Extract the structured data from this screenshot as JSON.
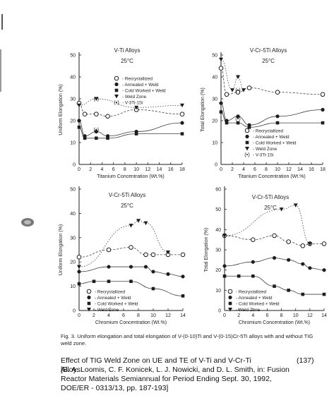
{
  "caption": "Fig. 3. Uniform elongation and total elongation of V-(0-10)Ti and V-(0-15)Cr-5Ti alloys with and without TIG weld zone.",
  "citation": {
    "title": "Effect of TIG Weld Zone on UE and TE of V-Ti and V-Cr-Ti Alloys",
    "number": "(137)",
    "lines": [
      "[B. A. Loomis, C. F. Konicek, L. J. Nowicki, and D. L. Smith, in: Fusion",
      "Reactor Materials Semiannual for Period Ending Sept. 30, 1992,",
      "DOE/ER - 0313/13, pp. 187-193]"
    ]
  },
  "chart_data": [
    {
      "type": "scatter",
      "title": "V-Ti Alloys",
      "subtitle": "25°C",
      "xlabel": "Titanium Concentration (Wt.%)",
      "ylabel": "Uniform Elongation (%)",
      "xlim": [
        0,
        18
      ],
      "ylim": [
        0,
        50
      ],
      "xticks": [
        0,
        2,
        4,
        6,
        8,
        10,
        12,
        14,
        16,
        18
      ],
      "yticks": [
        0,
        10,
        20,
        30,
        40,
        50
      ],
      "legend": [
        {
          "marker": "open",
          "label": "Recrystallized"
        },
        {
          "marker": "filled",
          "label": "Annealed + Weld"
        },
        {
          "marker": "square",
          "label": "Cold Worked + Weld"
        },
        {
          "marker": "triangle",
          "label": "Weld Zone"
        },
        {
          "marker": "paren",
          "label": "V-3Ti-1Si"
        }
      ],
      "series": [
        {
          "name": "Recrystallized",
          "marker": "open",
          "x": [
            0,
            1,
            3,
            5,
            10,
            18
          ],
          "y": [
            28,
            23,
            23,
            22,
            25,
            23
          ]
        },
        {
          "name": "Annealed + Weld",
          "marker": "filled",
          "x": [
            0,
            1,
            3,
            5,
            10,
            18
          ],
          "y": [
            20,
            13,
            15,
            13,
            15,
            19
          ]
        },
        {
          "name": "Cold Worked + Weld",
          "marker": "square",
          "x": [
            0,
            1,
            3,
            5,
            10,
            18
          ],
          "y": [
            17,
            12,
            12,
            12,
            14,
            14
          ]
        },
        {
          "name": "Weld Zone",
          "marker": "triangle",
          "x": [
            0,
            3,
            10,
            18
          ],
          "y": [
            27,
            30,
            26,
            27
          ]
        },
        {
          "name": "V-3Ti-1Si",
          "marker": "paren",
          "x": [
            3,
            3
          ],
          "y": [
            16,
            30
          ]
        }
      ]
    },
    {
      "type": "scatter",
      "title": "V-Cr-5Ti Alloys",
      "subtitle": "25°C",
      "xlabel": "Titanium Concentration (Wt.%)",
      "ylabel": "Total Elongation (%)",
      "xlim": [
        0,
        18
      ],
      "ylim": [
        0,
        50
      ],
      "xticks": [
        0,
        2,
        4,
        6,
        8,
        10,
        12,
        14,
        16,
        18
      ],
      "yticks": [
        0,
        10,
        20,
        30,
        40,
        50
      ],
      "legend": [
        {
          "marker": "open",
          "label": "Recrystallized"
        },
        {
          "marker": "filled",
          "label": "Annealed + Weld"
        },
        {
          "marker": "square",
          "label": "Cold Worked + Weld"
        },
        {
          "marker": "triangle",
          "label": "Weld Zone"
        },
        {
          "marker": "paren",
          "label": "V-3Ti-1Si"
        }
      ],
      "series": [
        {
          "name": "Recrystallized",
          "marker": "open",
          "x": [
            0,
            1,
            3,
            5,
            10,
            18
          ],
          "y": [
            44,
            32,
            33,
            35,
            33,
            32
          ]
        },
        {
          "name": "Annealed + Weld",
          "marker": "filled",
          "x": [
            0,
            1,
            3,
            5,
            10,
            18
          ],
          "y": [
            28,
            20,
            22,
            18,
            22,
            25
          ]
        },
        {
          "name": "Cold Worked + Weld",
          "marker": "square",
          "x": [
            0,
            1,
            3,
            5,
            10,
            18
          ],
          "y": [
            24,
            19,
            19,
            17,
            19,
            19
          ]
        },
        {
          "name": "Weld Zone",
          "marker": "triangle",
          "x": [
            0,
            2,
            3,
            4
          ],
          "y": [
            48,
            34,
            40,
            34
          ]
        },
        {
          "name": "V-3Ti-1Si",
          "marker": "paren",
          "x": [
            3,
            3
          ],
          "y": [
            21,
            34
          ]
        }
      ]
    },
    {
      "type": "scatter",
      "title": "V-Cr-5Ti Alloys",
      "subtitle": "25°C",
      "xlabel": "Chromium Concentration (Wt.%)",
      "ylabel": "Uniform Elongation (%)",
      "xlim": [
        0,
        14
      ],
      "ylim": [
        0,
        50
      ],
      "xticks": [
        0,
        2,
        4,
        6,
        8,
        10,
        12,
        14
      ],
      "yticks": [
        0,
        10,
        20,
        30,
        40,
        50
      ],
      "legend": [
        {
          "marker": "open",
          "label": "Recrystallized"
        },
        {
          "marker": "filled",
          "label": "Annealed + Weld"
        },
        {
          "marker": "square",
          "label": "Cold Worked + Weld"
        },
        {
          "marker": "triangle",
          "label": "Weld Zone"
        }
      ],
      "series": [
        {
          "name": "Recrystallized",
          "marker": "open",
          "x": [
            0,
            4,
            7,
            9,
            10,
            12,
            14
          ],
          "y": [
            22,
            25,
            26,
            23,
            23,
            23,
            23
          ]
        },
        {
          "name": "Annealed + Weld",
          "marker": "filled",
          "x": [
            0,
            4,
            7,
            9,
            10,
            12,
            14
          ],
          "y": [
            16,
            18,
            18,
            18,
            16,
            15,
            14
          ]
        },
        {
          "name": "Cold Worked + Weld",
          "marker": "square",
          "x": [
            0,
            2,
            4,
            7,
            10,
            14
          ],
          "y": [
            11,
            12,
            12,
            12,
            9,
            6
          ]
        },
        {
          "name": "Weld Zone",
          "marker": "triangle",
          "x": [
            0,
            7,
            8,
            9,
            12
          ],
          "y": [
            18,
            35,
            37,
            36,
            24
          ]
        }
      ]
    },
    {
      "type": "scatter",
      "title": "V-Cr-5Ti Alloys",
      "subtitle": "25°C",
      "xlabel": "Chromium Concentration (Wt.%)",
      "ylabel": "Total Elongation (%)",
      "xlim": [
        0,
        14
      ],
      "ylim": [
        0,
        60
      ],
      "xticks": [
        0,
        2,
        4,
        6,
        8,
        10,
        12,
        14
      ],
      "yticks": [
        0,
        10,
        20,
        30,
        40,
        50,
        60
      ],
      "legend": [
        {
          "marker": "open",
          "label": "Recrystallized"
        },
        {
          "marker": "filled",
          "label": "Annealed + Weld"
        },
        {
          "marker": "square",
          "label": "Cold Worked + Weld"
        },
        {
          "marker": "triangle",
          "label": "Weld Zone"
        }
      ],
      "series": [
        {
          "name": "Recrystallized",
          "marker": "open",
          "x": [
            0,
            4,
            7,
            9,
            11,
            12,
            14
          ],
          "y": [
            37,
            35,
            37,
            34,
            32,
            33,
            33
          ]
        },
        {
          "name": "Annealed + Weld",
          "marker": "filled",
          "x": [
            0,
            4,
            7,
            9,
            11,
            12,
            14
          ],
          "y": [
            22,
            24,
            26,
            25,
            23,
            21,
            20
          ]
        },
        {
          "name": "Cold Worked + Weld",
          "marker": "square",
          "x": [
            0,
            2,
            4,
            7,
            9,
            11,
            14
          ],
          "y": [
            17,
            17,
            17,
            12,
            10,
            8,
            8
          ]
        },
        {
          "name": "Weld Zone",
          "marker": "triangle",
          "x": [
            0,
            8,
            10,
            12
          ],
          "y": [
            37,
            50,
            52,
            33
          ]
        }
      ]
    }
  ]
}
